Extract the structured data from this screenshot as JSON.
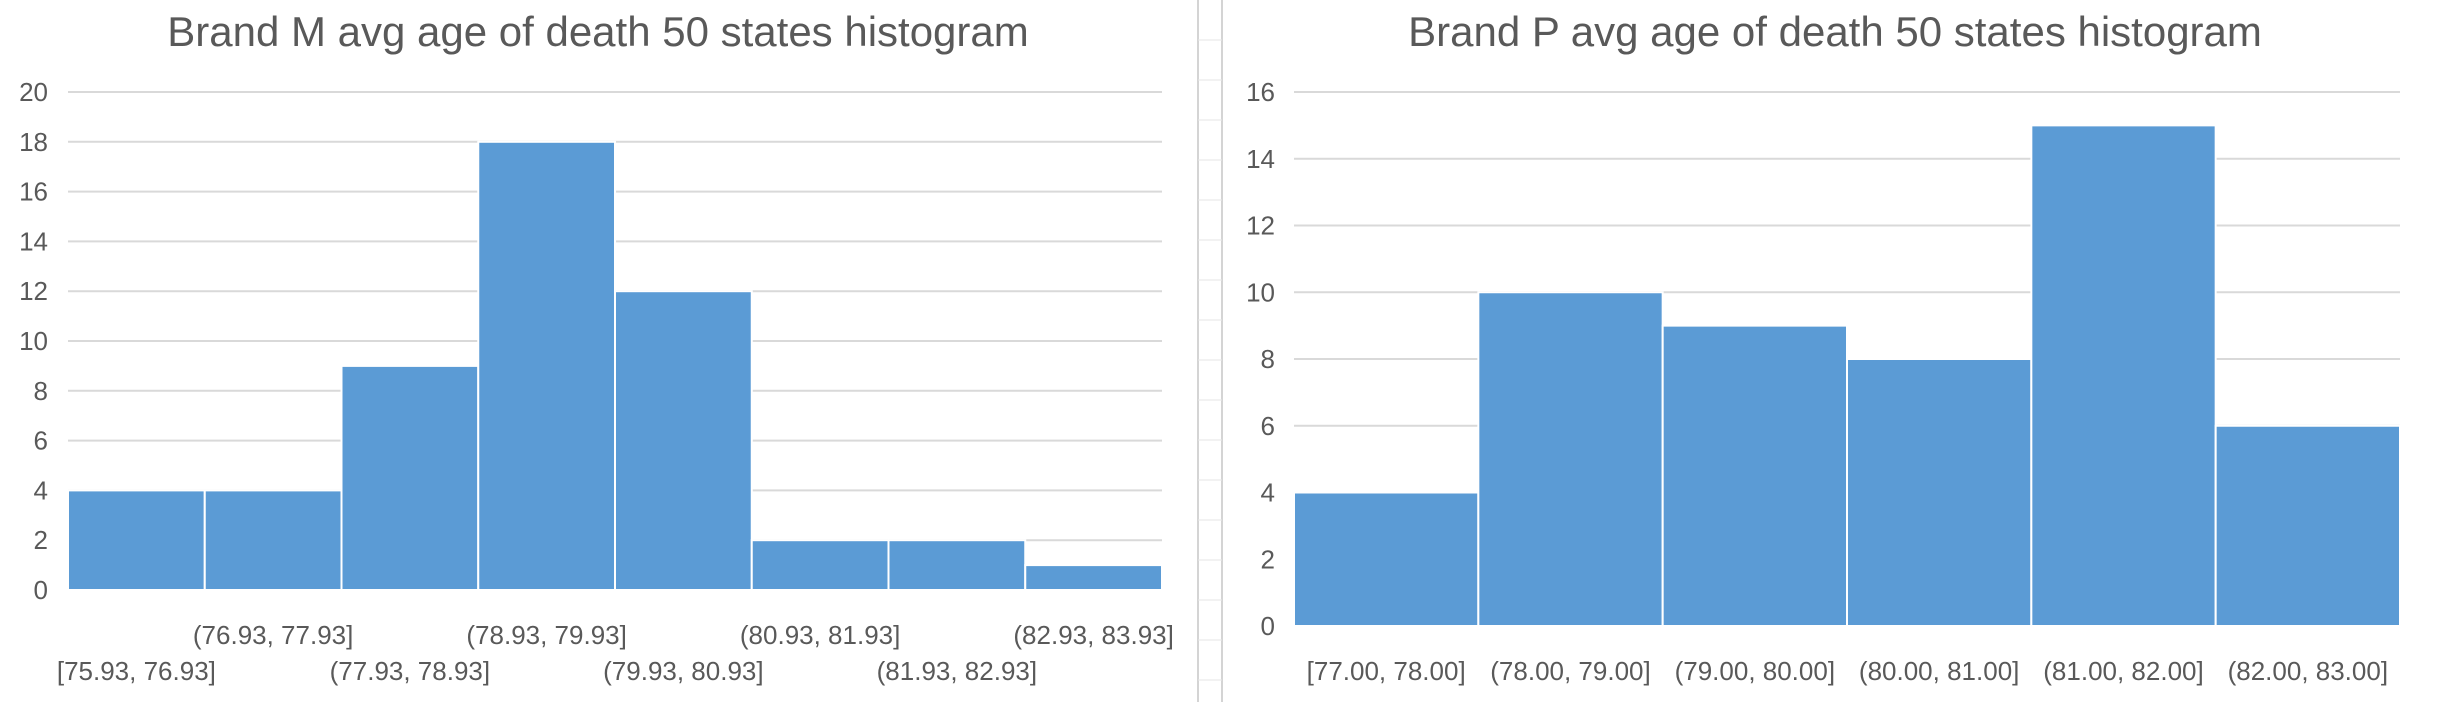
{
  "chart_data": [
    {
      "type": "bar",
      "title": "Brand M avg age of death 50 states histogram",
      "xlabel": "",
      "ylabel": "",
      "categories": [
        "[75.93, 76.93]",
        "(76.93, 77.93]",
        "(77.93, 78.93]",
        "(78.93, 79.93]",
        "(79.93, 80.93]",
        "(80.93, 81.93]",
        "(81.93, 82.93]",
        "(82.93, 83.93]"
      ],
      "values": [
        4,
        4,
        9,
        18,
        12,
        2,
        2,
        1
      ],
      "ylim": [
        0,
        20
      ],
      "yticks": [
        0,
        2,
        4,
        6,
        8,
        10,
        12,
        14,
        16,
        18,
        20
      ],
      "grid": true,
      "legend": "none",
      "bar_color": "#5b9bd5"
    },
    {
      "type": "bar",
      "title": "Brand P avg age of death 50 states histogram",
      "xlabel": "",
      "ylabel": "",
      "categories": [
        "[77.00, 78.00]",
        "(78.00, 79.00]",
        "(79.00, 80.00]",
        "(80.00, 81.00]",
        "(81.00, 82.00]",
        "(82.00, 83.00]"
      ],
      "values": [
        4,
        10,
        9,
        8,
        15,
        6
      ],
      "ylim": [
        0,
        16
      ],
      "yticks": [
        0,
        2,
        4,
        6,
        8,
        10,
        12,
        14,
        16
      ],
      "grid": true,
      "legend": "none",
      "bar_color": "#5b9bd5"
    }
  ]
}
